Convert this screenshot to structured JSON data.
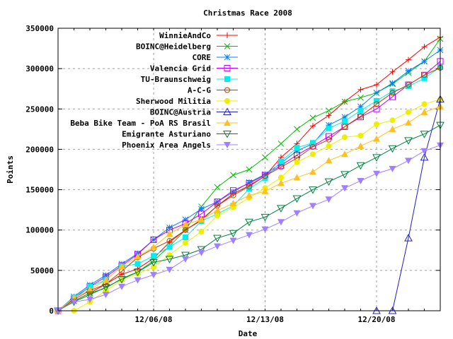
{
  "chart_data": {
    "type": "line",
    "title": "Christmas Race 2008",
    "xlabel": "Date",
    "ylabel": "Points",
    "ylim": [
      0,
      350000
    ],
    "yticks": [
      "0",
      "50000",
      "100000",
      "150000",
      "200000",
      "250000",
      "300000",
      "350000"
    ],
    "ytick_values": [
      0,
      50000,
      100000,
      150000,
      200000,
      250000,
      300000,
      350000
    ],
    "x_start_date": "11/30/08",
    "x_end_date": "12/24/08",
    "xlim_days": [
      0,
      24
    ],
    "xticks": [
      {
        "label": "12/06/08",
        "day": 6
      },
      {
        "label": "12/13/08",
        "day": 13
      },
      {
        "label": "12/20/08",
        "day": 20
      }
    ],
    "grid": true,
    "legend_placement": "top-left",
    "days": [
      0,
      1,
      2,
      3,
      4,
      5,
      6,
      7,
      8,
      9,
      10,
      11,
      12,
      13,
      14,
      15,
      16,
      17,
      18,
      19,
      20,
      21,
      22,
      23,
      24
    ],
    "series": [
      {
        "name": "WinnieAndCo",
        "color": "#ff0000",
        "marker": "plus",
        "values": [
          0,
          12000,
          22000,
          33000,
          45000,
          52000,
          65000,
          85000,
          100000,
          112000,
          130000,
          145000,
          155000,
          167000,
          190000,
          207000,
          229000,
          242000,
          259000,
          274000,
          280000,
          296000,
          311000,
          327000,
          339000
        ]
      },
      {
        "name": "BOINC@Heidelberg",
        "color": "#00c000",
        "marker": "cross",
        "values": [
          0,
          12000,
          22000,
          28000,
          40000,
          48000,
          62000,
          80000,
          100000,
          129000,
          153000,
          168000,
          175000,
          190000,
          207000,
          225000,
          239000,
          248000,
          259000,
          264000,
          270000,
          281000,
          295000,
          309000,
          337000
        ]
      },
      {
        "name": "CORE",
        "color": "#0080ff",
        "marker": "star",
        "values": [
          0,
          17500,
          32000,
          44000,
          58000,
          71000,
          88000,
          103000,
          113000,
          126000,
          135000,
          147000,
          159000,
          169000,
          183000,
          198000,
          207000,
          230000,
          240000,
          253000,
          270000,
          282000,
          297000,
          309000,
          323000
        ]
      },
      {
        "name": "Valencia Grid",
        "color": "#c000ff",
        "marker": "box",
        "values": [
          0,
          15000,
          30000,
          42000,
          56000,
          70000,
          88000,
          100000,
          108000,
          120000,
          135000,
          149000,
          158000,
          168000,
          180000,
          193000,
          204000,
          216000,
          228000,
          240000,
          250000,
          265000,
          280000,
          292000,
          309000
        ]
      },
      {
        "name": "TU-Braunschweig",
        "color": "#00eeee",
        "marker": "boxfill",
        "values": [
          0,
          16500,
          30000,
          38000,
          55000,
          58000,
          68000,
          79000,
          91000,
          111000,
          120000,
          130000,
          151000,
          164000,
          185000,
          202000,
          208000,
          226000,
          235000,
          248000,
          260000,
          272000,
          278000,
          288000,
          302000
        ]
      },
      {
        "name": "A-C-G",
        "color": "#c04000",
        "marker": "circle",
        "values": [
          0,
          14000,
          25000,
          33000,
          49000,
          66000,
          77000,
          86600,
          100000,
          113000,
          130000,
          143000,
          154000,
          167000,
          178000,
          189000,
          203000,
          212000,
          228000,
          241000,
          256000,
          270000,
          280000,
          292000,
          301000
        ]
      },
      {
        "name": "Sherwood Militia",
        "color": "#eeee00",
        "marker": "circlefill",
        "values": [
          0,
          0,
          11000,
          25000,
          38000,
          46000,
          54000,
          69000,
          84000,
          98000,
          118000,
          128000,
          140000,
          152000,
          165000,
          184000,
          194000,
          204000,
          215000,
          217000,
          231000,
          236000,
          246000,
          256000,
          262000
        ]
      },
      {
        "name": "BOINC@Austria",
        "color": "#2020c0",
        "marker": "triangle",
        "values": [
          null,
          null,
          null,
          null,
          null,
          null,
          null,
          null,
          null,
          null,
          null,
          null,
          null,
          null,
          null,
          null,
          null,
          null,
          null,
          null,
          0,
          0,
          90000,
          190000,
          262000
        ]
      },
      {
        "name": "Beba Bike Team - PoA RS Brasil",
        "color": "#ffc020",
        "marker": "trianglefill",
        "values": [
          0,
          16000,
          26000,
          38000,
          55000,
          67000,
          79000,
          95000,
          107000,
          113000,
          124000,
          133000,
          143000,
          148000,
          158000,
          165000,
          172000,
          186000,
          194000,
          204000,
          213000,
          225000,
          233000,
          246000,
          253000
        ]
      },
      {
        "name": "Emigrante Asturiano",
        "color": "#008040",
        "marker": "itriangle",
        "values": [
          0,
          11000,
          20000,
          29000,
          39000,
          48000,
          60000,
          64000,
          69000,
          76000,
          90000,
          96000,
          110000,
          116000,
          127000,
          139000,
          150000,
          160000,
          169000,
          180000,
          190000,
          201000,
          211000,
          219000,
          230000
        ]
      },
      {
        "name": "Phoenix Area Angels",
        "color": "#a080ff",
        "marker": "itrianglefill",
        "values": [
          0,
          11000,
          14000,
          20000,
          30000,
          38000,
          44500,
          51000,
          64000,
          72000,
          80000,
          87000,
          94000,
          101000,
          110000,
          121000,
          130000,
          138000,
          152000,
          161000,
          170000,
          176000,
          186000,
          198000,
          205000
        ]
      }
    ]
  }
}
